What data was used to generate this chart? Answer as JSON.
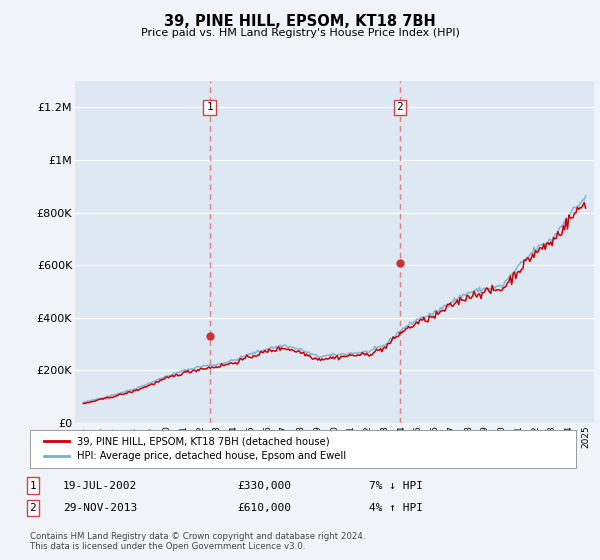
{
  "title": "39, PINE HILL, EPSOM, KT18 7BH",
  "subtitle": "Price paid vs. HM Land Registry's House Price Index (HPI)",
  "ylabel_ticks": [
    "£0",
    "£200K",
    "£400K",
    "£600K",
    "£800K",
    "£1M",
    "£1.2M"
  ],
  "ytick_values": [
    0,
    200000,
    400000,
    600000,
    800000,
    1000000,
    1200000
  ],
  "ylim": [
    0,
    1300000
  ],
  "xlim_start": 1994.5,
  "xlim_end": 2025.5,
  "transaction1": {
    "date_num": 2002.54,
    "price": 330000,
    "label": "1",
    "hpi_diff": "7% ↓ HPI",
    "date_str": "19-JUL-2002"
  },
  "transaction2": {
    "date_num": 2013.91,
    "price": 610000,
    "label": "2",
    "hpi_diff": "4% ↑ HPI",
    "date_str": "29-NOV-2013"
  },
  "line1_color": "#cc0000",
  "line2_color": "#7aafd4",
  "vline_color": "#e08080",
  "marker_color": "#cc3333",
  "bg_color": "#f0f4f8",
  "plot_bg_color": "#dde8f3",
  "legend_label1": "39, PINE HILL, EPSOM, KT18 7BH (detached house)",
  "legend_label2": "HPI: Average price, detached house, Epsom and Ewell",
  "footer": "Contains HM Land Registry data © Crown copyright and database right 2024.\nThis data is licensed under the Open Government Licence v3.0.",
  "xtick_years": [
    1995,
    1996,
    1997,
    1998,
    1999,
    2000,
    2001,
    2002,
    2003,
    2004,
    2005,
    2006,
    2007,
    2008,
    2009,
    2010,
    2011,
    2012,
    2013,
    2014,
    2015,
    2016,
    2017,
    2018,
    2019,
    2020,
    2021,
    2022,
    2023,
    2024,
    2025
  ],
  "hpi_years": [
    1995,
    1996,
    1997,
    1998,
    1999,
    2000,
    2001,
    2002,
    2003,
    2004,
    2005,
    2006,
    2007,
    2008,
    2009,
    2010,
    2011,
    2012,
    2013,
    2014,
    2015,
    2016,
    2017,
    2018,
    2019,
    2020,
    2021,
    2022,
    2023,
    2024,
    2025
  ],
  "hpi_values": [
    78000,
    93000,
    110000,
    128000,
    152000,
    178000,
    198000,
    215000,
    222000,
    238000,
    262000,
    282000,
    295000,
    278000,
    252000,
    258000,
    265000,
    270000,
    295000,
    355000,
    395000,
    418000,
    462000,
    495000,
    510000,
    520000,
    595000,
    660000,
    700000,
    790000,
    860000
  ],
  "price_years": [
    1995,
    1996,
    1997,
    1998,
    1999,
    2000,
    2001,
    2002,
    2003,
    2004,
    2005,
    2006,
    2007,
    2008,
    2009,
    2010,
    2011,
    2012,
    2013,
    2014,
    2015,
    2016,
    2017,
    2018,
    2019,
    2020,
    2021,
    2022,
    2023,
    2024,
    2025
  ],
  "price_values": [
    72000,
    88000,
    103000,
    120000,
    144000,
    170000,
    190000,
    205000,
    214000,
    228000,
    252000,
    272000,
    285000,
    268000,
    242000,
    248000,
    256000,
    260000,
    285000,
    345000,
    382000,
    405000,
    448000,
    482000,
    498000,
    508000,
    580000,
    648000,
    688000,
    770000,
    840000
  ]
}
